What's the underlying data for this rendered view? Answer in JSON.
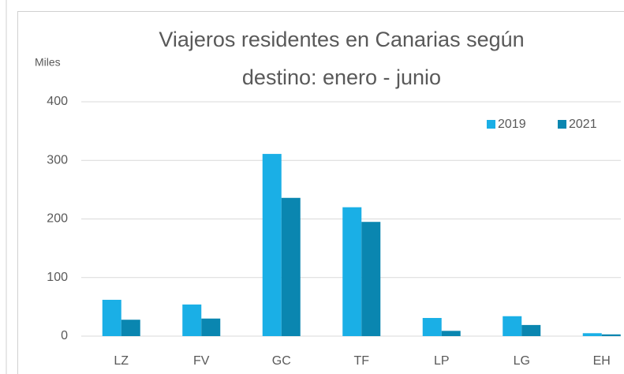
{
  "chart_data": {
    "type": "bar",
    "title": "Viajeros residentes en Canarias según destino: enero - junio",
    "y_label": "Miles",
    "categories": [
      "LZ",
      "FV",
      "GC",
      "TF",
      "LP",
      "LG",
      "EH"
    ],
    "series": [
      {
        "name": "2019",
        "color": "#1aafe6",
        "values": [
          62,
          54,
          311,
          220,
          31,
          34,
          5
        ]
      },
      {
        "name": "2021",
        "color": "#0a86b0",
        "values": [
          28,
          30,
          236,
          195,
          9,
          19,
          3
        ]
      }
    ],
    "ylim": [
      0,
      400
    ],
    "yticks": [
      0,
      100,
      200,
      300,
      400
    ],
    "grid": true,
    "legend": "top-right"
  }
}
